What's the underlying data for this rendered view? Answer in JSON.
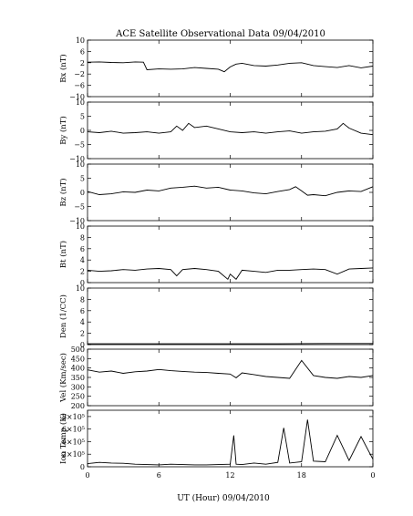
{
  "chart_data": {
    "type": "line",
    "title": "ACE Satellite Observational Data   09/04/2010",
    "xlabel": "UT (Hour)   09/04/2010",
    "x_ticks": [
      "0",
      "6",
      "12",
      "18",
      "0"
    ],
    "xlim": [
      0,
      24
    ],
    "panels": [
      {
        "ylabel": "Bx (nT)",
        "ylim": [
          -10,
          10
        ],
        "yticks": [
          10,
          6,
          2,
          -2,
          -6,
          -10
        ],
        "ytick_labels": [
          "10",
          "6",
          "2",
          "−2",
          "−6",
          "−10"
        ],
        "x": [
          0,
          1,
          2,
          3,
          4,
          4.7,
          5,
          6,
          7,
          8,
          9,
          10,
          11,
          11.5,
          12,
          12.5,
          13,
          14,
          15,
          16,
          17,
          18,
          19,
          20,
          21,
          22,
          23,
          24
        ],
        "values": [
          2.2,
          2.3,
          2.1,
          2.0,
          2.3,
          2.2,
          -0.5,
          -0.2,
          -0.3,
          -0.2,
          0.3,
          0.0,
          -0.3,
          -1.2,
          0.5,
          1.5,
          1.8,
          1.0,
          0.8,
          1.2,
          1.8,
          2.0,
          1.0,
          0.6,
          0.3,
          1.0,
          0.2,
          0.8
        ]
      },
      {
        "ylabel": "By (nT)",
        "ylim": [
          -10,
          10
        ],
        "yticks": [
          10,
          5,
          0,
          -5,
          -10
        ],
        "ytick_labels": [
          "10",
          "5",
          "0",
          "−5",
          "−10"
        ],
        "x": [
          0,
          1,
          2,
          3,
          4,
          5,
          6,
          7,
          7.5,
          8,
          8.5,
          9,
          10,
          11,
          12,
          13,
          14,
          15,
          16,
          17,
          18,
          19,
          20,
          21,
          21.5,
          22,
          23,
          24
        ],
        "values": [
          -0.5,
          -0.8,
          -0.3,
          -1.0,
          -0.8,
          -0.5,
          -1.0,
          -0.5,
          1.5,
          0.0,
          2.5,
          1.0,
          1.5,
          0.5,
          -0.5,
          -0.8,
          -0.5,
          -1.0,
          -0.5,
          -0.2,
          -1.0,
          -0.5,
          -0.3,
          0.5,
          2.5,
          0.8,
          -1.0,
          -1.5
        ]
      },
      {
        "ylabel": "Bz (nT)",
        "ylim": [
          -10,
          10
        ],
        "yticks": [
          10,
          5,
          0,
          -5,
          -10
        ],
        "ytick_labels": [
          "10",
          "5",
          "0",
          "−5",
          "−10"
        ],
        "x": [
          0,
          1,
          2,
          3,
          4,
          5,
          6,
          7,
          8,
          9,
          10,
          11,
          12,
          13,
          14,
          15,
          16,
          17,
          17.5,
          18,
          18.5,
          19,
          20,
          21,
          22,
          23,
          24
        ],
        "values": [
          0.3,
          -0.8,
          -0.5,
          0.2,
          0.0,
          0.8,
          0.5,
          1.5,
          1.8,
          2.2,
          1.5,
          1.8,
          0.8,
          0.5,
          -0.2,
          -0.5,
          0.3,
          1.0,
          2.0,
          0.5,
          -1.0,
          -0.8,
          -1.2,
          0.0,
          0.5,
          0.3,
          2.0
        ]
      },
      {
        "ylabel": "Bt (nT)",
        "ylim": [
          0,
          10
        ],
        "yticks": [
          10,
          8,
          6,
          4,
          2,
          0
        ],
        "ytick_labels": [
          "10",
          "8",
          "6",
          "4",
          "2",
          "0"
        ],
        "x": [
          0,
          1,
          2,
          3,
          4,
          5,
          6,
          7,
          7.5,
          8,
          9,
          10,
          11,
          11.8,
          12,
          12.5,
          13,
          14,
          15,
          16,
          17,
          18,
          19,
          20,
          21,
          22,
          23,
          24
        ],
        "values": [
          2.2,
          2.0,
          2.1,
          2.3,
          2.2,
          2.4,
          2.5,
          2.3,
          1.2,
          2.3,
          2.5,
          2.3,
          2.0,
          0.6,
          1.5,
          0.6,
          2.2,
          2.0,
          1.8,
          2.2,
          2.2,
          2.3,
          2.4,
          2.3,
          1.5,
          2.4,
          2.5,
          2.6
        ]
      },
      {
        "ylabel": "Den (1/CC)",
        "ylim": [
          0,
          10
        ],
        "yticks": [
          10,
          8,
          6,
          4,
          2,
          0
        ],
        "ytick_labels": [
          "10",
          "8",
          "6",
          "4",
          "2",
          "0"
        ],
        "x": [
          0,
          4,
          8,
          12,
          16,
          20,
          24
        ],
        "values": [
          0.15,
          0.15,
          0.15,
          0.15,
          0.15,
          0.2,
          0.2
        ]
      },
      {
        "ylabel": "Vel (Km/sec)",
        "ylim": [
          200,
          500
        ],
        "yticks": [
          500,
          450,
          400,
          350,
          300,
          250,
          200
        ],
        "ytick_labels": [
          "500",
          "450",
          "400",
          "350",
          "300",
          "250",
          "200"
        ],
        "x": [
          0,
          1,
          2,
          3,
          4,
          5,
          6,
          7,
          8,
          9,
          10,
          11,
          12,
          12.5,
          13,
          14,
          15,
          16,
          17,
          18,
          19,
          20,
          21,
          22,
          23,
          24
        ],
        "values": [
          390,
          378,
          384,
          372,
          380,
          384,
          392,
          386,
          382,
          378,
          376,
          372,
          368,
          348,
          374,
          365,
          355,
          350,
          345,
          440,
          360,
          350,
          345,
          355,
          350,
          360
        ]
      },
      {
        "ylabel": "Ion Temp (K)",
        "ylim": [
          0,
          900000
        ],
        "yticks": [
          800000,
          600000,
          400000,
          200000,
          0
        ],
        "ytick_labels": [
          "8×10⁵",
          "6×10⁵",
          "4×10⁵",
          "2×10⁵",
          "0"
        ],
        "x": [
          0,
          1,
          2,
          3,
          4,
          5,
          6,
          7,
          8,
          9,
          10,
          11,
          12,
          12.3,
          12.5,
          13,
          14,
          15,
          16,
          16.5,
          17,
          18,
          18.5,
          19,
          20,
          21,
          22,
          23,
          24
        ],
        "values": [
          50000,
          70000,
          60000,
          55000,
          40000,
          35000,
          30000,
          40000,
          35000,
          30000,
          30000,
          35000,
          40000,
          500000,
          40000,
          35000,
          60000,
          40000,
          70000,
          620000,
          60000,
          80000,
          750000,
          90000,
          80000,
          500000,
          100000,
          480000,
          120000
        ]
      }
    ]
  }
}
